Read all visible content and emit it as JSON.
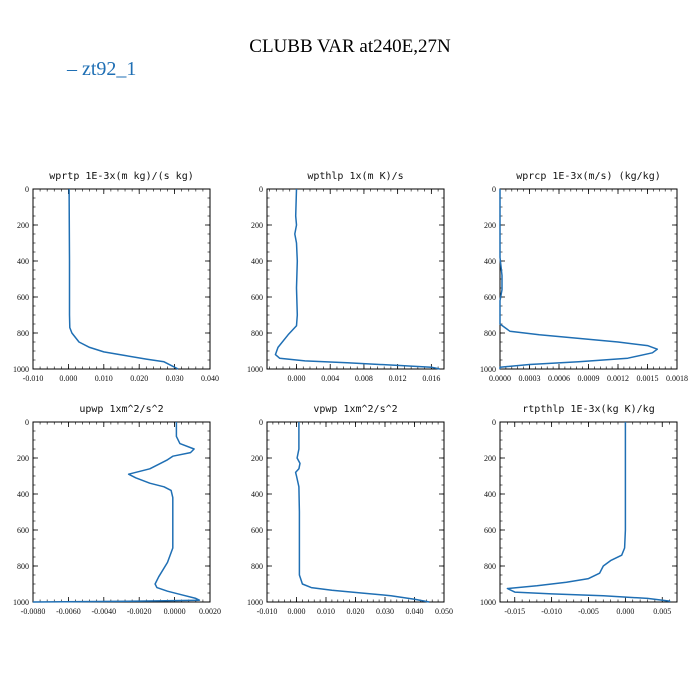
{
  "title": "CLUBB VAR at240E,27N",
  "legend": {
    "entries": [
      {
        "marker": "–",
        "label": "zt92_1",
        "color": "#1f6fb4"
      }
    ]
  },
  "colors": {
    "series": "#1f6fb4",
    "axes": "#000000"
  },
  "chart_data": [
    {
      "type": "line",
      "title": "wprtp  1E-3x(m kg)/(s kg)",
      "xlim": [
        -0.01,
        0.04
      ],
      "ylim": [
        1000,
        0
      ],
      "y_inverted": true,
      "xticks": [
        "-0.010",
        "0.000",
        "0.010",
        "0.020",
        "0.030",
        "0.040"
      ],
      "yticks": [
        "0",
        "200",
        "400",
        "600",
        "800",
        "1000"
      ],
      "series": [
        {
          "name": "zt92_1",
          "points": [
            [
              0.0002,
              0
            ],
            [
              0.0003,
              400
            ],
            [
              0.0003,
              700
            ],
            [
              0.0004,
              770
            ],
            [
              0.001,
              800
            ],
            [
              0.003,
              850
            ],
            [
              0.006,
              880
            ],
            [
              0.01,
              905
            ],
            [
              0.016,
              925
            ],
            [
              0.022,
              945
            ],
            [
              0.027,
              960
            ],
            [
              0.029,
              980
            ],
            [
              0.031,
              1000
            ]
          ]
        }
      ]
    },
    {
      "type": "line",
      "title": "wpthlp  1x(m K)/s",
      "xlim": [
        -0.0035,
        0.0175
      ],
      "ylim": [
        1000,
        0
      ],
      "y_inverted": true,
      "xticks": [
        "0.000",
        "0.004",
        "0.008",
        "0.012",
        "0.016"
      ],
      "yticks": [
        "0",
        "200",
        "400",
        "600",
        "800",
        "1000"
      ],
      "series": [
        {
          "name": "zt92_1",
          "points": [
            [
              0.0,
              0
            ],
            [
              -0.0001,
              150
            ],
            [
              0.0,
              200
            ],
            [
              -0.0002,
              250
            ],
            [
              0.0,
              300
            ],
            [
              0.0001,
              400
            ],
            [
              0.0,
              550
            ],
            [
              0.0001,
              700
            ],
            [
              0.0,
              760
            ],
            [
              -0.001,
              810
            ],
            [
              -0.0022,
              880
            ],
            [
              -0.0025,
              920
            ],
            [
              -0.002,
              940
            ],
            [
              0.001,
              955
            ],
            [
              0.006,
              965
            ],
            [
              0.012,
              980
            ],
            [
              0.016,
              990
            ],
            [
              0.017,
              1000
            ]
          ]
        }
      ]
    },
    {
      "type": "line",
      "title": "wprcp  1E-3x(m/s) (kg/kg)",
      "xlim": [
        0.0,
        0.0018
      ],
      "ylim": [
        1000,
        0
      ],
      "y_inverted": true,
      "xticks": [
        "0.0000",
        "0.0003",
        "0.0006",
        "0.0009",
        "0.0012",
        "0.0015",
        "0.0018"
      ],
      "yticks": [
        "0",
        "200",
        "400",
        "600",
        "800",
        "1000"
      ],
      "series": [
        {
          "name": "zt92_1",
          "points": [
            [
              0.0,
              0
            ],
            [
              0.0,
              380
            ],
            [
              2e-05,
              480
            ],
            [
              2e-05,
              560
            ],
            [
              0.0,
              620
            ],
            [
              0.0,
              750
            ],
            [
              0.0001,
              790
            ],
            [
              0.0004,
              810
            ],
            [
              0.0008,
              830
            ],
            [
              0.0012,
              850
            ],
            [
              0.0015,
              870
            ],
            [
              0.0016,
              890
            ],
            [
              0.00155,
              910
            ],
            [
              0.0013,
              940
            ],
            [
              0.0008,
              960
            ],
            [
              0.0003,
              975
            ],
            [
              0.0,
              990
            ],
            [
              0.0,
              1000
            ]
          ]
        }
      ]
    },
    {
      "type": "line",
      "title": "upwp  1xm^2/s^2",
      "xlim": [
        -0.008,
        0.002
      ],
      "ylim": [
        1000,
        0
      ],
      "y_inverted": true,
      "xticks": [
        "-0.0080",
        "-0.0060",
        "-0.0040",
        "-0.0020",
        "0.0000",
        "0.0020"
      ],
      "yticks": [
        "0",
        "200",
        "400",
        "600",
        "800",
        "1000"
      ],
      "series": [
        {
          "name": "zt92_1",
          "points": [
            [
              0.0001,
              0
            ],
            [
              0.0001,
              80
            ],
            [
              0.0003,
              120
            ],
            [
              0.0011,
              150
            ],
            [
              0.0009,
              170
            ],
            [
              -0.0001,
              190
            ],
            [
              -0.0004,
              210
            ],
            [
              -0.0008,
              230
            ],
            [
              -0.0014,
              260
            ],
            [
              -0.0026,
              290
            ],
            [
              -0.0022,
              310
            ],
            [
              -0.0014,
              340
            ],
            [
              -0.0006,
              360
            ],
            [
              -0.0002,
              380
            ],
            [
              -0.0001,
              420
            ],
            [
              -0.0001,
              500
            ],
            [
              -0.0001,
              600
            ],
            [
              -0.0001,
              700
            ],
            [
              -0.0004,
              780
            ],
            [
              -0.0009,
              860
            ],
            [
              -0.0011,
              900
            ],
            [
              -0.001,
              920
            ],
            [
              -0.0004,
              940
            ],
            [
              0.0004,
              960
            ],
            [
              0.0012,
              980
            ],
            [
              0.0014,
              990
            ],
            [
              -0.002,
              995
            ],
            [
              -0.008,
              1000
            ]
          ]
        }
      ]
    },
    {
      "type": "line",
      "title": "vpwp  1xm^2/s^2",
      "xlim": [
        -0.01,
        0.05
      ],
      "ylim": [
        1000,
        0
      ],
      "y_inverted": true,
      "xticks": [
        "-0.010",
        "0.000",
        "0.010",
        "0.020",
        "0.030",
        "0.040",
        "0.050"
      ],
      "yticks": [
        "0",
        "200",
        "400",
        "600",
        "800",
        "1000"
      ],
      "series": [
        {
          "name": "zt92_1",
          "points": [
            [
              0.0008,
              0
            ],
            [
              0.0008,
              150
            ],
            [
              0.0002,
              200
            ],
            [
              0.0012,
              230
            ],
            [
              0.0008,
              260
            ],
            [
              -0.0003,
              280
            ],
            [
              0.0,
              300
            ],
            [
              0.0008,
              360
            ],
            [
              0.001,
              500
            ],
            [
              0.001,
              700
            ],
            [
              0.001,
              850
            ],
            [
              0.002,
              900
            ],
            [
              0.005,
              920
            ],
            [
              0.012,
              935
            ],
            [
              0.022,
              950
            ],
            [
              0.032,
              965
            ],
            [
              0.04,
              985
            ],
            [
              0.045,
              1000
            ]
          ]
        }
      ]
    },
    {
      "type": "line",
      "title": "rtpthlp  1E-3x(kg K)/kg",
      "xlim": [
        -0.017,
        0.007
      ],
      "ylim": [
        1000,
        0
      ],
      "y_inverted": true,
      "xticks": [
        "-0.015",
        "-0.010",
        "-0.005",
        "0.000",
        "0.005"
      ],
      "yticks": [
        "0",
        "200",
        "400",
        "600",
        "800",
        "1000"
      ],
      "series": [
        {
          "name": "zt92_1",
          "points": [
            [
              0.0,
              0
            ],
            [
              0.0,
              600
            ],
            [
              -0.0001,
              700
            ],
            [
              -0.0005,
              740
            ],
            [
              -0.002,
              770
            ],
            [
              -0.003,
              800
            ],
            [
              -0.0035,
              840
            ],
            [
              -0.005,
              870
            ],
            [
              -0.008,
              890
            ],
            [
              -0.012,
              910
            ],
            [
              -0.016,
              925
            ],
            [
              -0.015,
              945
            ],
            [
              -0.01,
              955
            ],
            [
              -0.003,
              965
            ],
            [
              0.003,
              980
            ],
            [
              0.006,
              995
            ],
            [
              0.006,
              1000
            ]
          ]
        }
      ]
    }
  ]
}
